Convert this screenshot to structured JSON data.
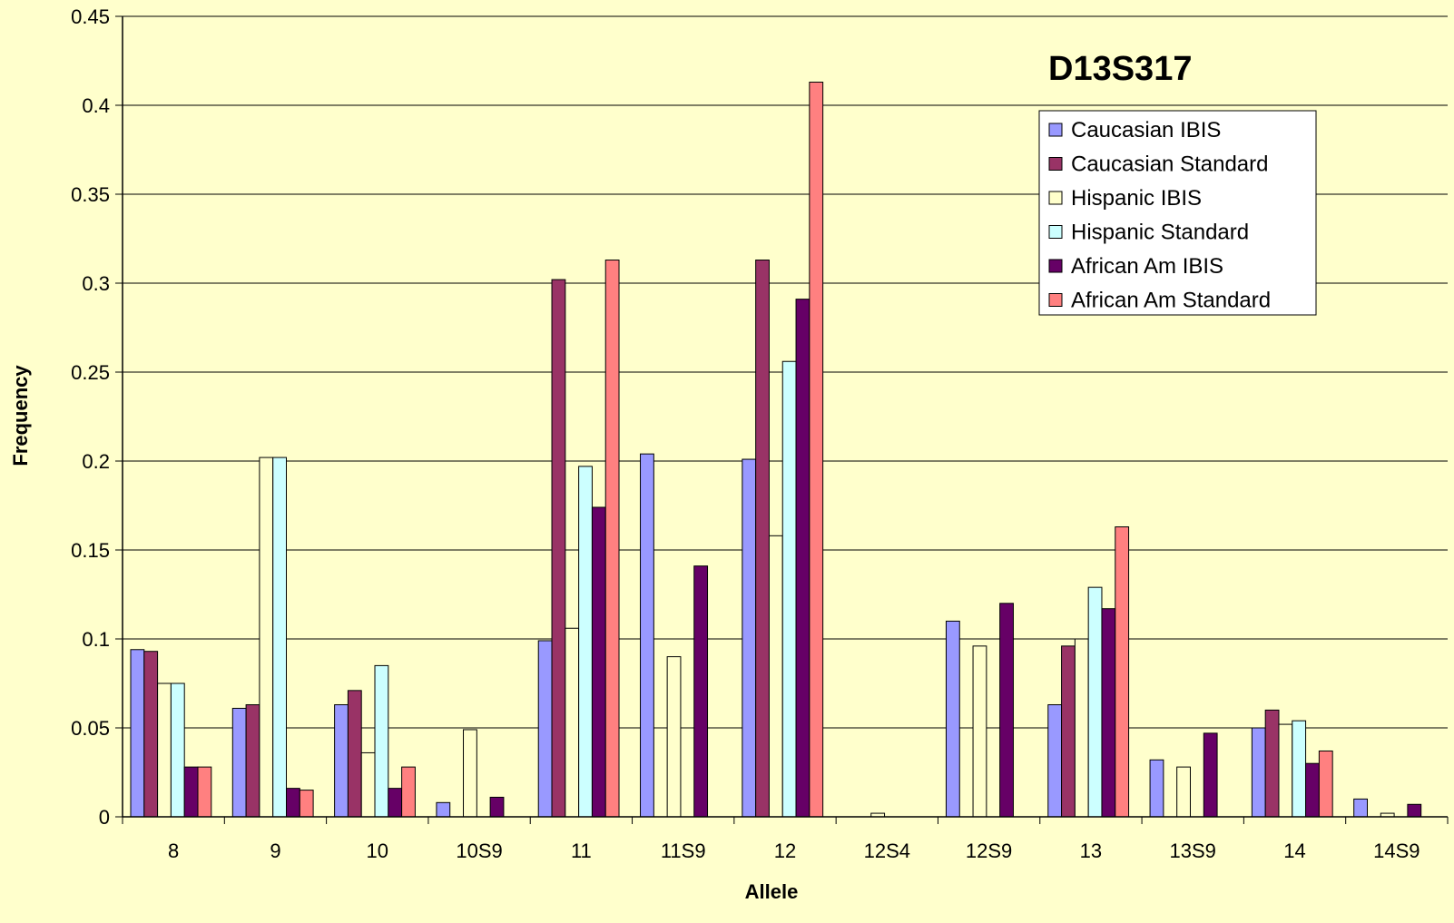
{
  "chart_data": {
    "type": "bar",
    "title": "D13S317",
    "xlabel": "Allele",
    "ylabel": "Frequency",
    "ylim": [
      0,
      0.45
    ],
    "yticks": [
      "0",
      "0.05",
      "0.1",
      "0.15",
      "0.2",
      "0.25",
      "0.3",
      "0.35",
      "0.4",
      "0.45"
    ],
    "grid": true,
    "legend_position": "top-right",
    "categories": [
      "8",
      "9",
      "10",
      "10S9",
      "11",
      "11S9",
      "12",
      "12S4",
      "12S9",
      "13",
      "13S9",
      "14",
      "14S9"
    ],
    "series": [
      {
        "name": "Caucasian IBIS",
        "color": "#9999ff",
        "values": [
          0.094,
          0.061,
          0.063,
          0.008,
          0.099,
          0.204,
          0.201,
          0,
          0.11,
          0.063,
          0.032,
          0.05,
          0.01
        ]
      },
      {
        "name": "Caucasian Standard",
        "color": "#993366",
        "values": [
          0.093,
          0.063,
          0.071,
          0,
          0.302,
          0,
          0.313,
          0,
          0,
          0.096,
          0,
          0.06,
          0
        ]
      },
      {
        "name": "Hispanic IBIS",
        "color": "#ffffcc",
        "values": [
          0.075,
          0.202,
          0.036,
          0.049,
          0.106,
          0.09,
          0.158,
          0.002,
          0.096,
          0.1,
          0.028,
          0.052,
          0.002
        ]
      },
      {
        "name": "Hispanic Standard",
        "color": "#ccffff",
        "values": [
          0.075,
          0.202,
          0.085,
          0,
          0.197,
          0,
          0.256,
          0,
          0,
          0.129,
          0,
          0.054,
          0
        ]
      },
      {
        "name": "African Am IBIS",
        "color": "#660066",
        "values": [
          0.028,
          0.016,
          0.016,
          0.011,
          0.174,
          0.141,
          0.291,
          0,
          0.12,
          0.117,
          0.047,
          0.03,
          0.007
        ]
      },
      {
        "name": "African Am Standard",
        "color": "#ff8080",
        "values": [
          0.028,
          0.015,
          0.028,
          0,
          0.313,
          0,
          0.413,
          0,
          0,
          0.163,
          0,
          0.037,
          0
        ]
      }
    ]
  }
}
